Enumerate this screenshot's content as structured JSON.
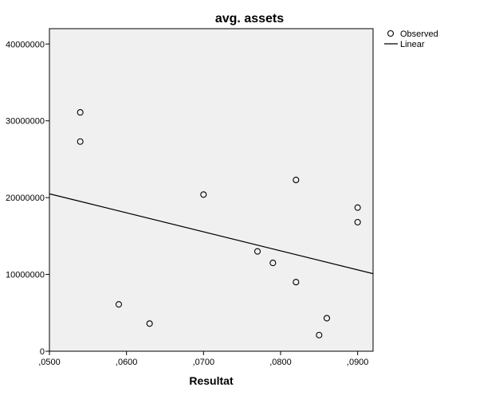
{
  "chart_data": {
    "type": "scatter",
    "title": "avg. assets",
    "xlabel": "Resultat",
    "ylabel": "",
    "xlim": [
      0.05,
      0.092
    ],
    "ylim": [
      0,
      42000000
    ],
    "x_ticks": [
      0.05,
      0.06,
      0.07,
      0.08,
      0.09
    ],
    "x_tick_labels": [
      ",0500",
      ",0600",
      ",0700",
      ",0800",
      ",0900"
    ],
    "y_ticks": [
      0,
      10000000,
      20000000,
      30000000,
      40000000
    ],
    "y_tick_labels": [
      "0",
      "10000000",
      "20000000",
      "30000000",
      "40000000"
    ],
    "series": [
      {
        "name": "Observed",
        "marker": "open-circle",
        "points": [
          {
            "x": 0.054,
            "y": 31100000
          },
          {
            "x": 0.054,
            "y": 27300000
          },
          {
            "x": 0.059,
            "y": 6100000
          },
          {
            "x": 0.063,
            "y": 3600000
          },
          {
            "x": 0.07,
            "y": 20400000
          },
          {
            "x": 0.077,
            "y": 13000000
          },
          {
            "x": 0.079,
            "y": 11500000
          },
          {
            "x": 0.082,
            "y": 22300000
          },
          {
            "x": 0.082,
            "y": 9000000
          },
          {
            "x": 0.085,
            "y": 2100000
          },
          {
            "x": 0.086,
            "y": 4300000
          },
          {
            "x": 0.09,
            "y": 18700000
          },
          {
            "x": 0.09,
            "y": 16800000
          }
        ]
      },
      {
        "name": "Linear",
        "kind": "fit-line",
        "line": [
          {
            "x": 0.05,
            "y": 20500000
          },
          {
            "x": 0.092,
            "y": 10100000
          }
        ]
      }
    ],
    "grid": false,
    "legend_position": "top-right",
    "plot_background": "#f0f0f0",
    "marker_color": "#000000",
    "line_color": "#000000"
  }
}
